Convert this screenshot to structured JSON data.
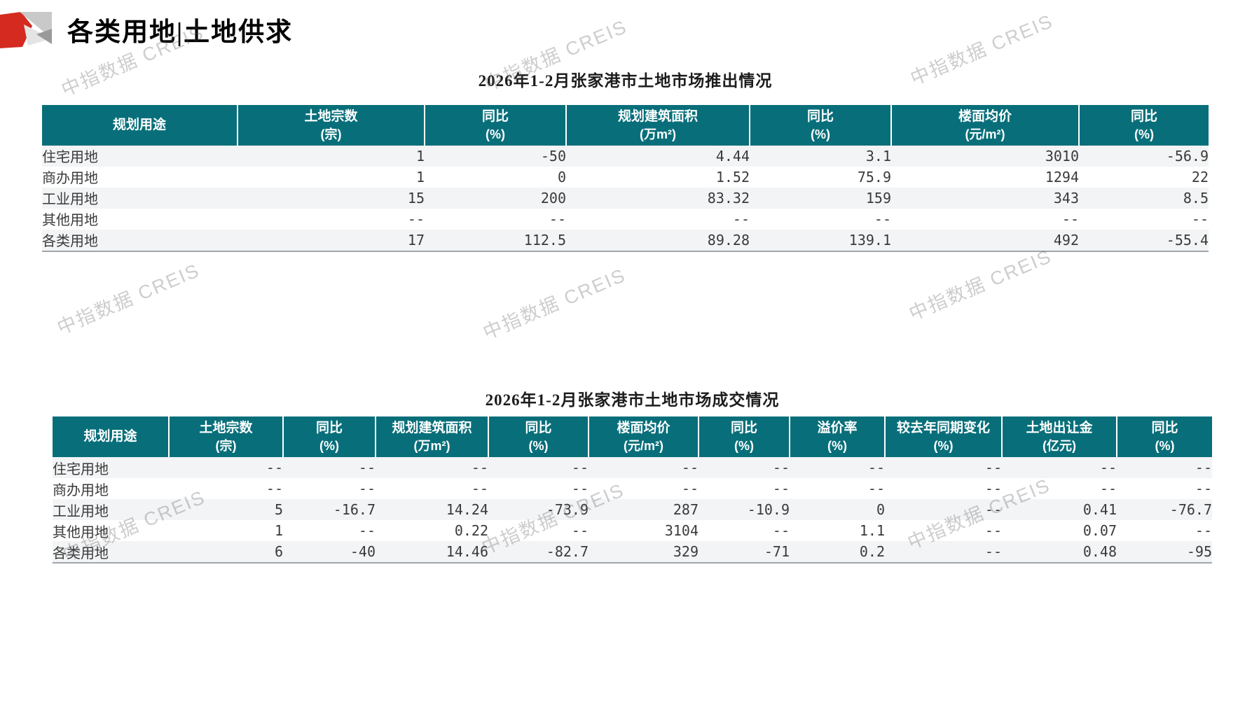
{
  "page": {
    "title": "各类用地|土地供求"
  },
  "watermark": {
    "text": "中指数据 CREIS"
  },
  "colors": {
    "header_bg": "#086F7A",
    "row_stripe": "#f2f4f5",
    "logo_red": "#d42a20",
    "logo_gray_light": "#c9c9c9",
    "logo_gray_mid": "#e2e2e2",
    "logo_gray_dark": "#9a9a9a"
  },
  "table1": {
    "title": "2026年1-2月张家港市土地市场推出情况",
    "headers": [
      {
        "label": "规划用途",
        "unit": ""
      },
      {
        "label": "土地宗数",
        "unit": "(宗)"
      },
      {
        "label": "同比",
        "unit": "(%)"
      },
      {
        "label": "规划建筑面积",
        "unit": "(万m²)"
      },
      {
        "label": "同比",
        "unit": "(%)"
      },
      {
        "label": "楼面均价",
        "unit": "(元/m²)"
      },
      {
        "label": "同比",
        "unit": "(%)"
      }
    ],
    "rows": [
      [
        "住宅用地",
        "1",
        "-50",
        "4.44",
        "3.1",
        "3010",
        "-56.9"
      ],
      [
        "商办用地",
        "1",
        "0",
        "1.52",
        "75.9",
        "1294",
        "22"
      ],
      [
        "工业用地",
        "15",
        "200",
        "83.32",
        "159",
        "343",
        "8.5"
      ],
      [
        "其他用地",
        "--",
        "--",
        "--",
        "--",
        "--",
        "--"
      ],
      [
        "各类用地",
        "17",
        "112.5",
        "89.28",
        "139.1",
        "492",
        "-55.4"
      ]
    ]
  },
  "table2": {
    "title": "2026年1-2月张家港市土地市场成交情况",
    "headers": [
      {
        "label": "规划用途",
        "unit": ""
      },
      {
        "label": "土地宗数",
        "unit": "(宗)"
      },
      {
        "label": "同比",
        "unit": "(%)"
      },
      {
        "label": "规划建筑面积",
        "unit": "(万m²)"
      },
      {
        "label": "同比",
        "unit": "(%)"
      },
      {
        "label": "楼面均价",
        "unit": "(元/m²)"
      },
      {
        "label": "同比",
        "unit": "(%)"
      },
      {
        "label": "溢价率",
        "unit": "(%)"
      },
      {
        "label": "较去年同期变化",
        "unit": "(%)"
      },
      {
        "label": "土地出让金",
        "unit": "(亿元)"
      },
      {
        "label": "同比",
        "unit": "(%)"
      }
    ],
    "rows": [
      [
        "住宅用地",
        "--",
        "--",
        "--",
        "--",
        "--",
        "--",
        "--",
        "--",
        "--",
        "--"
      ],
      [
        "商办用地",
        "--",
        "--",
        "--",
        "--",
        "--",
        "--",
        "--",
        "--",
        "--",
        "--"
      ],
      [
        "工业用地",
        "5",
        "-16.7",
        "14.24",
        "-73.9",
        "287",
        "-10.9",
        "0",
        "--",
        "0.41",
        "-76.7"
      ],
      [
        "其他用地",
        "1",
        "--",
        "0.22",
        "--",
        "3104",
        "--",
        "1.1",
        "--",
        "0.07",
        "--"
      ],
      [
        "各类用地",
        "6",
        "-40",
        "14.46",
        "-82.7",
        "329",
        "-71",
        "0.2",
        "--",
        "0.48",
        "-95"
      ]
    ]
  }
}
